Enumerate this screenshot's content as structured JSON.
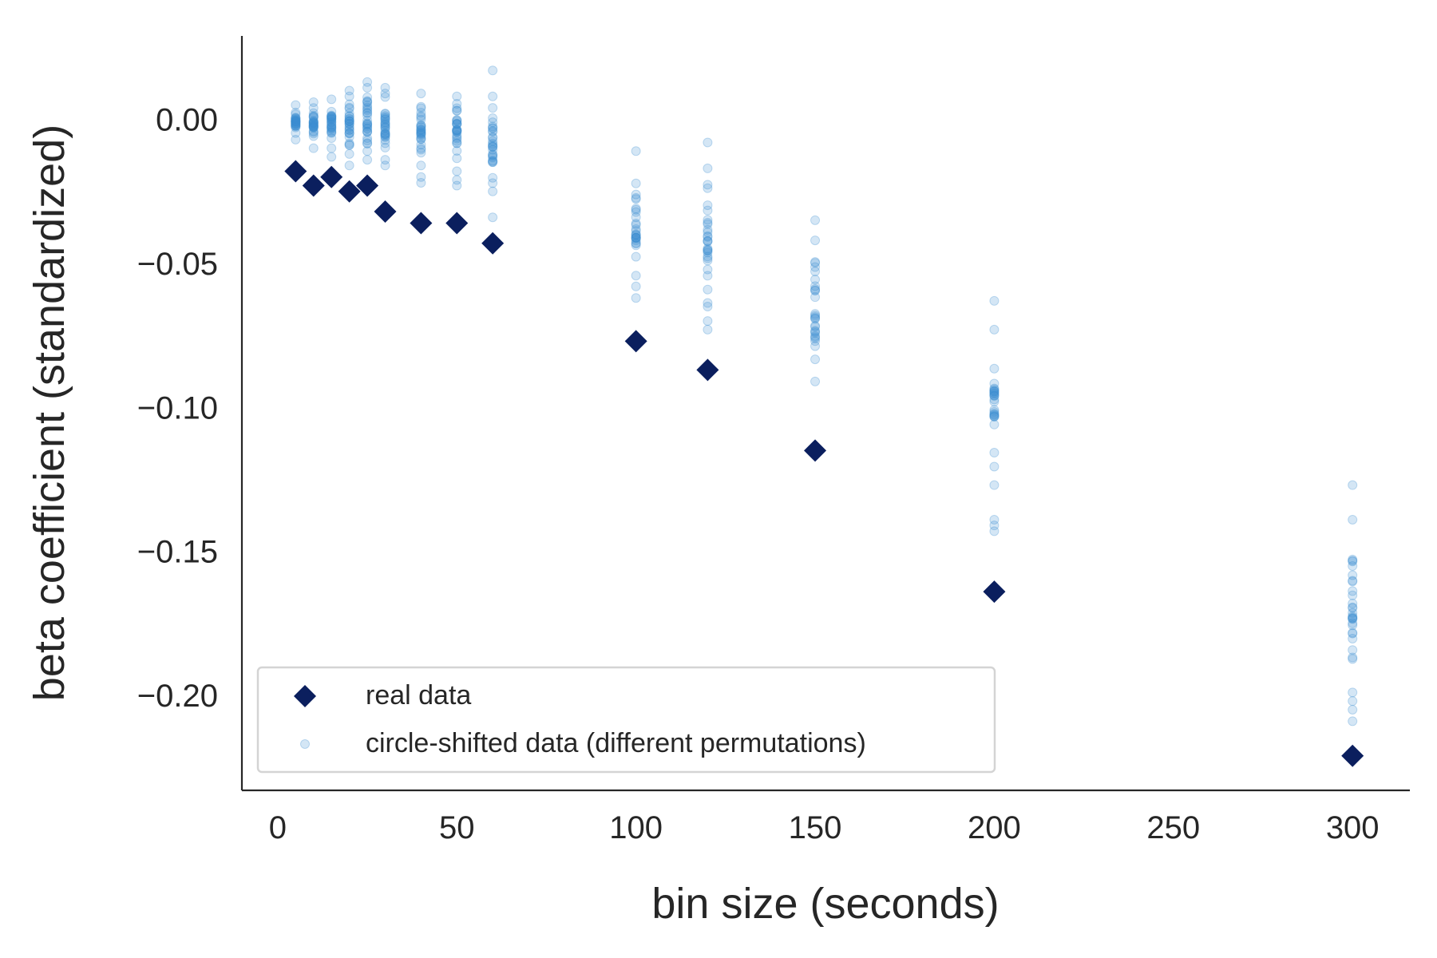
{
  "chart_data": {
    "type": "scatter",
    "title": "",
    "xlabel": "bin size (seconds)",
    "ylabel": "beta coefficient (standardized)",
    "xlim": [
      -10,
      316
    ],
    "ylim": [
      -0.233,
      0.029
    ],
    "xticks": [
      0,
      50,
      100,
      150,
      200,
      250,
      300
    ],
    "xtick_labels": [
      "0",
      "50",
      "100",
      "150",
      "200",
      "250",
      "300"
    ],
    "yticks": [
      0.0,
      -0.05,
      -0.1,
      -0.15,
      -0.2
    ],
    "ytick_labels": [
      "0.00",
      "−0.05",
      "−0.10",
      "−0.15",
      "−0.20"
    ],
    "grid": false,
    "legend_position": "lower-left",
    "colors": {
      "real": "#0b1f5e",
      "shifted": "#3d8fd1"
    },
    "series": [
      {
        "name": "real data",
        "marker": "diamond",
        "x": [
          5,
          10,
          15,
          20,
          25,
          30,
          40,
          50,
          60,
          100,
          120,
          150,
          200,
          300
        ],
        "y": [
          -0.018,
          -0.023,
          -0.02,
          -0.025,
          -0.023,
          -0.032,
          -0.036,
          -0.036,
          -0.043,
          -0.077,
          -0.087,
          -0.115,
          -0.164,
          -0.221
        ]
      },
      {
        "name": "circle-shifted data (different permutations)",
        "marker": "circle",
        "distribution": [
          {
            "x": 5,
            "min": -0.007,
            "max": 0.005,
            "outliers": []
          },
          {
            "x": 10,
            "min": -0.01,
            "max": 0.006,
            "outliers": []
          },
          {
            "x": 15,
            "min": -0.01,
            "max": 0.007,
            "outliers": [
              -0.013
            ]
          },
          {
            "x": 20,
            "min": -0.012,
            "max": 0.008,
            "outliers": [
              0.01,
              -0.016
            ]
          },
          {
            "x": 25,
            "min": -0.011,
            "max": 0.011,
            "outliers": [
              0.013,
              -0.014
            ]
          },
          {
            "x": 30,
            "min": -0.014,
            "max": 0.009,
            "outliers": [
              0.011,
              -0.016
            ]
          },
          {
            "x": 40,
            "min": -0.016,
            "max": 0.009,
            "outliers": [
              -0.02,
              -0.022
            ]
          },
          {
            "x": 50,
            "min": -0.018,
            "max": 0.008,
            "outliers": [
              -0.021,
              -0.023
            ]
          },
          {
            "x": 60,
            "min": -0.025,
            "max": 0.004,
            "outliers": [
              0.017,
              0.008,
              -0.034
            ]
          },
          {
            "x": 100,
            "min": -0.058,
            "max": -0.011,
            "outliers": [
              -0.062
            ]
          },
          {
            "x": 120,
            "min": -0.065,
            "max": -0.017,
            "outliers": [
              -0.008,
              -0.07,
              -0.073
            ]
          },
          {
            "x": 150,
            "min": -0.091,
            "max": -0.042,
            "outliers": [
              -0.035
            ]
          },
          {
            "x": 200,
            "min": -0.127,
            "max": -0.073,
            "outliers": [
              -0.063,
              -0.139,
              -0.141,
              -0.143
            ]
          },
          {
            "x": 300,
            "min": -0.199,
            "max": -0.139,
            "outliers": [
              -0.127,
              -0.202,
              -0.205,
              -0.209
            ]
          }
        ],
        "points_per_bin": 26
      }
    ]
  }
}
